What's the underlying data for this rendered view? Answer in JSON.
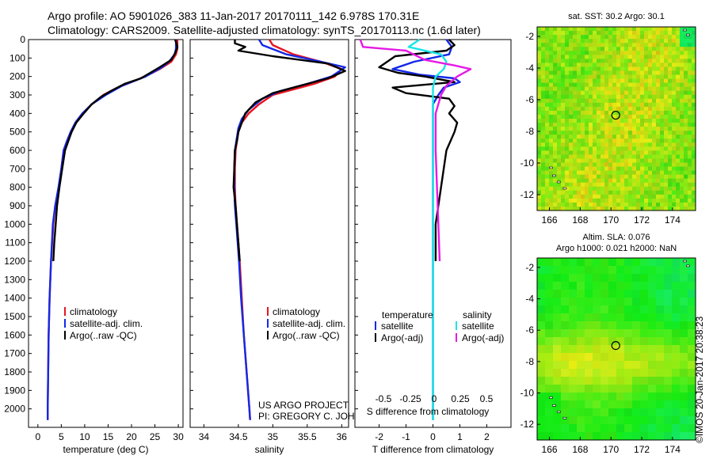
{
  "header": {
    "line1": "Argo profile: AO 5901026_383 11-Jan-2017 20170111_142 6.978S 170.31E",
    "line2": "Climatology: CARS2009. Satellite-adjusted climatology: synTS_20170113.nc (1.6d later)"
  },
  "colors": {
    "climatology": "#e8141e",
    "satellite": "#1428e6",
    "argo": "#000000",
    "sal_satellite": "#19e6e6",
    "sal_argo": "#e619e6"
  },
  "chart_data": [
    {
      "type": "line",
      "xlabel": "temperature (deg C)",
      "ylabel": "",
      "xlim": [
        -2,
        31
      ],
      "ylim": [
        2100,
        0
      ],
      "xticks": [
        0,
        5,
        10,
        15,
        20,
        25,
        30
      ],
      "yticks": [
        0,
        100,
        200,
        300,
        400,
        500,
        600,
        700,
        800,
        900,
        1000,
        1100,
        1200,
        1300,
        1400,
        1500,
        1600,
        1700,
        1800,
        1900,
        2000
      ],
      "legend": [
        "climatology",
        "satellite-adj. clim.",
        "Argo(..raw -QC)"
      ],
      "series": [
        {
          "name": "climatology",
          "color": "#e8141e",
          "points": [
            [
              29.8,
              0
            ],
            [
              29.8,
              50
            ],
            [
              29.5,
              80
            ],
            [
              28.5,
              120
            ],
            [
              26,
              160
            ],
            [
              24.5,
              180
            ],
            [
              21,
              220
            ],
            [
              17,
              260
            ],
            [
              14,
              300
            ],
            [
              11.5,
              350
            ],
            [
              9.5,
              400
            ],
            [
              8,
              450
            ],
            [
              7,
              500
            ],
            [
              6.2,
              550
            ],
            [
              5.5,
              600
            ],
            [
              5,
              700
            ],
            [
              4.5,
              800
            ],
            [
              3.7,
              900
            ],
            [
              3.3,
              1000
            ],
            [
              2.8,
              1200
            ],
            [
              2.5,
              1400
            ],
            [
              2.3,
              1600
            ],
            [
              2.2,
              1800
            ],
            [
              2.1,
              2000
            ],
            [
              2.1,
              2060
            ]
          ]
        },
        {
          "name": "satellite-adj. clim.",
          "color": "#1428e6",
          "points": [
            [
              29.5,
              0
            ],
            [
              29.5,
              50
            ],
            [
              29.2,
              80
            ],
            [
              28,
              120
            ],
            [
              26.5,
              150
            ],
            [
              23,
              200
            ],
            [
              18,
              250
            ],
            [
              14.5,
              300
            ],
            [
              11.5,
              350
            ],
            [
              9.5,
              400
            ],
            [
              8,
              450
            ],
            [
              7,
              500
            ],
            [
              6.2,
              550
            ],
            [
              5.5,
              600
            ],
            [
              5,
              700
            ],
            [
              4.4,
              800
            ],
            [
              3.7,
              900
            ],
            [
              3.2,
              1000
            ],
            [
              2.8,
              1200
            ],
            [
              2.5,
              1400
            ],
            [
              2.3,
              1600
            ],
            [
              2.2,
              1800
            ],
            [
              2.1,
              2000
            ],
            [
              2.1,
              2060
            ]
          ]
        },
        {
          "name": "Argo(..raw -QC)",
          "color": "#000000",
          "points": [
            [
              29.3,
              0
            ],
            [
              29.6,
              20
            ],
            [
              29.8,
              40
            ],
            [
              29.4,
              70
            ],
            [
              28.5,
              110
            ],
            [
              26,
              150
            ],
            [
              22,
              210
            ],
            [
              18.5,
              240
            ],
            [
              15.5,
              280
            ],
            [
              13.5,
              310
            ],
            [
              11.5,
              350
            ],
            [
              9.8,
              400
            ],
            [
              8.2,
              450
            ],
            [
              7.2,
              500
            ],
            [
              6.5,
              550
            ],
            [
              5.8,
              600
            ],
            [
              5.2,
              700
            ],
            [
              4.6,
              800
            ],
            [
              4.1,
              900
            ],
            [
              3.8,
              1000
            ],
            [
              3.5,
              1100
            ],
            [
              3.3,
              1200
            ]
          ]
        }
      ]
    },
    {
      "type": "line",
      "xlabel": "salinity",
      "ylabel": "",
      "xlim": [
        33.8,
        36.1
      ],
      "ylim": [
        2100,
        0
      ],
      "xticks": [
        34,
        34.5,
        35,
        35.5,
        36
      ],
      "legend": [
        "climatology",
        "satellite-adj. clim.",
        "Argo(..raw -QC)"
      ],
      "annotation": [
        "US ARGO PROJECT",
        "PI: GREGORY C. JOHNSON"
      ],
      "series": [
        {
          "name": "climatology",
          "color": "#e8141e",
          "points": [
            [
              34.95,
              0
            ],
            [
              35.0,
              30
            ],
            [
              35.3,
              80
            ],
            [
              35.7,
              120
            ],
            [
              36.0,
              160
            ],
            [
              35.9,
              200
            ],
            [
              35.6,
              240
            ],
            [
              35.3,
              270
            ],
            [
              35.0,
              300
            ],
            [
              34.8,
              350
            ],
            [
              34.65,
              400
            ],
            [
              34.55,
              450
            ],
            [
              34.5,
              500
            ],
            [
              34.48,
              550
            ],
            [
              34.46,
              600
            ],
            [
              34.45,
              700
            ],
            [
              34.45,
              800
            ],
            [
              34.46,
              900
            ],
            [
              34.48,
              1000
            ],
            [
              34.5,
              1100
            ],
            [
              34.52,
              1200
            ],
            [
              34.55,
              1400
            ],
            [
              34.58,
              1600
            ],
            [
              34.62,
              1800
            ],
            [
              34.66,
              2000
            ],
            [
              34.67,
              2060
            ]
          ]
        },
        {
          "name": "satellite-adj. clim.",
          "color": "#1428e6",
          "points": [
            [
              34.8,
              0
            ],
            [
              34.85,
              30
            ],
            [
              35.2,
              80
            ],
            [
              35.7,
              120
            ],
            [
              36.05,
              150
            ],
            [
              35.85,
              200
            ],
            [
              35.5,
              240
            ],
            [
              35.1,
              280
            ],
            [
              34.85,
              320
            ],
            [
              34.65,
              380
            ],
            [
              34.55,
              430
            ],
            [
              34.5,
              480
            ],
            [
              34.47,
              550
            ],
            [
              34.45,
              600
            ],
            [
              34.44,
              700
            ],
            [
              34.44,
              800
            ],
            [
              34.45,
              900
            ],
            [
              34.47,
              1000
            ],
            [
              34.49,
              1100
            ],
            [
              34.51,
              1200
            ],
            [
              34.54,
              1400
            ],
            [
              34.58,
              1600
            ],
            [
              34.62,
              1800
            ],
            [
              34.66,
              2000
            ],
            [
              34.67,
              2060
            ]
          ]
        },
        {
          "name": "Argo(..raw -QC)",
          "color": "#000000",
          "points": [
            [
              34.45,
              0
            ],
            [
              34.45,
              20
            ],
            [
              34.6,
              40
            ],
            [
              34.5,
              60
            ],
            [
              35.0,
              90
            ],
            [
              35.8,
              130
            ],
            [
              36.05,
              170
            ],
            [
              35.8,
              210
            ],
            [
              35.4,
              250
            ],
            [
              35.0,
              290
            ],
            [
              34.75,
              340
            ],
            [
              34.6,
              400
            ],
            [
              34.55,
              450
            ],
            [
              34.5,
              500
            ],
            [
              34.48,
              550
            ],
            [
              34.45,
              600
            ],
            [
              34.44,
              700
            ],
            [
              34.43,
              800
            ],
            [
              34.46,
              900
            ],
            [
              34.48,
              1000
            ],
            [
              34.5,
              1100
            ],
            [
              34.52,
              1200
            ]
          ]
        }
      ]
    },
    {
      "type": "line",
      "xlabel": "T difference from climatology",
      "xlabel_top": "S difference from climatology",
      "ylabel": "",
      "xlim": [
        -2.9,
        2.9
      ],
      "ylim": [
        2100,
        0
      ],
      "xticks": [
        -2,
        -1,
        0,
        1,
        2
      ],
      "xticks_top": [
        "-0.5",
        "-0.25",
        "0",
        "0.25",
        "0.5"
      ],
      "legend": {
        "temperature": [
          "satellite",
          "Argo(-adj)"
        ],
        "salinity": [
          "satellite",
          "Argo(-adj)"
        ]
      },
      "legend_titles": [
        "temperature",
        "salinity"
      ],
      "series": [
        {
          "name": "satellite",
          "color": "#1428e6",
          "points": [
            [
              0.5,
              0
            ],
            [
              0.7,
              40
            ],
            [
              0.6,
              80
            ],
            [
              -0.7,
              120
            ],
            [
              -1.5,
              160
            ],
            [
              -0.5,
              190
            ],
            [
              0.8,
              210
            ],
            [
              1.0,
              230
            ],
            [
              0.4,
              260
            ],
            [
              0.2,
              300
            ],
            [
              0.0,
              350
            ],
            [
              0.0,
              400
            ],
            [
              0.0,
              600
            ],
            [
              0.0,
              1000
            ],
            [
              0.0,
              1400
            ],
            [
              0.0,
              1800
            ],
            [
              0.0,
              2060
            ]
          ]
        },
        {
          "name": "Argo(-adj)",
          "color": "#000000",
          "points": [
            [
              0.6,
              0
            ],
            [
              0.8,
              30
            ],
            [
              0.5,
              60
            ],
            [
              -1.4,
              90
            ],
            [
              -2.0,
              150
            ],
            [
              -1.3,
              180
            ],
            [
              -0.3,
              200
            ],
            [
              0.8,
              230
            ],
            [
              -1.5,
              260
            ],
            [
              -1.0,
              290
            ],
            [
              0.6,
              320
            ],
            [
              0.8,
              360
            ],
            [
              0.6,
              400
            ],
            [
              0.9,
              450
            ],
            [
              0.8,
              500
            ],
            [
              0.5,
              600
            ],
            [
              0.4,
              700
            ],
            [
              0.3,
              800
            ],
            [
              0.2,
              900
            ],
            [
              0.1,
              1000
            ],
            [
              0.1,
              1100
            ],
            [
              0.1,
              1200
            ]
          ]
        },
        {
          "name": "salinity satellite",
          "color": "#19e6e6",
          "points": [
            [
              -0.5,
              0
            ],
            [
              -0.9,
              40
            ],
            [
              0.3,
              80
            ],
            [
              0.5,
              120
            ],
            [
              0.4,
              160
            ],
            [
              0.1,
              200
            ],
            [
              0.0,
              260
            ],
            [
              0.0,
              300
            ],
            [
              0.0,
              400
            ],
            [
              0.0,
              800
            ],
            [
              0.0,
              1400
            ],
            [
              0.0,
              2060
            ]
          ]
        },
        {
          "name": "salinity Argo(-adj)",
          "color": "#e619e6",
          "points": [
            [
              -2.7,
              0
            ],
            [
              -2.6,
              40
            ],
            [
              -1.0,
              60
            ],
            [
              -0.3,
              110
            ],
            [
              0.8,
              140
            ],
            [
              1.4,
              160
            ],
            [
              0.9,
              200
            ],
            [
              0.5,
              250
            ],
            [
              0.3,
              300
            ],
            [
              0.1,
              400
            ],
            [
              0.1,
              600
            ],
            [
              0.15,
              800
            ],
            [
              0.2,
              1000
            ],
            [
              0.25,
              1200
            ]
          ]
        }
      ]
    },
    {
      "type": "heatmap",
      "title": "sat. SST: 30.2  Argo: 30.1",
      "xlim": [
        165.2,
        175.5
      ],
      "ylim": [
        -13,
        -1.4
      ],
      "xticks": [
        166,
        168,
        170,
        172,
        174
      ],
      "yticks": [
        -2,
        -4,
        -6,
        -8,
        -10,
        -12
      ],
      "marker": [
        170.31,
        -6.978
      ]
    },
    {
      "type": "heatmap",
      "title": "Altim. SLA: 0.076",
      "subtitle": "Argo h1000: 0.021 h2000: NaN",
      "xlim": [
        165.2,
        175.5
      ],
      "ylim": [
        -13,
        -1.4
      ],
      "xticks": [
        166,
        168,
        170,
        172,
        174
      ],
      "yticks": [
        -2,
        -4,
        -6,
        -8,
        -10,
        -12
      ],
      "marker": [
        170.31,
        -6.978
      ]
    }
  ],
  "sidebar_text": "©IMOS 20-Jan-2017 20:38:23"
}
